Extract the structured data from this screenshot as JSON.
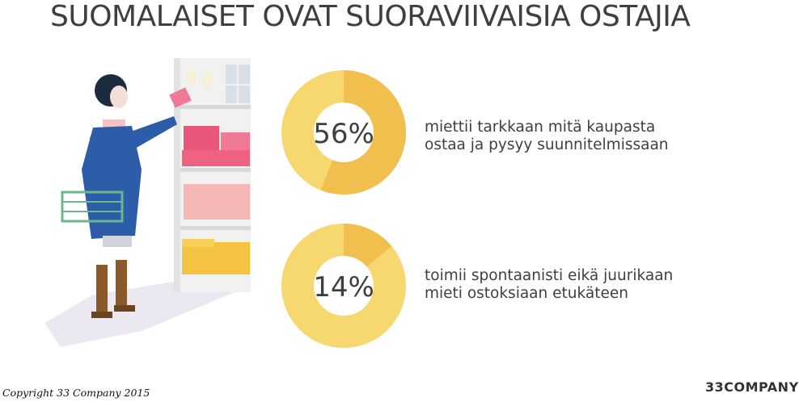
{
  "title": "SUOMALAISET OVAT SUORAVIIVAISIA OSTAJIA",
  "colors": {
    "ring_light": "#f7d76f",
    "ring_dark": "#f1bf4d",
    "text": "#3f3f3f"
  },
  "chart_data": [
    {
      "type": "pie",
      "values": [
        56,
        44
      ],
      "center_label": "56%",
      "description_lines": [
        "miettii tarkkaan mitä kaupasta",
        "ostaa ja pysyy suunnitelmissaan"
      ]
    },
    {
      "type": "pie",
      "values": [
        14,
        86
      ],
      "center_label": "14%",
      "description_lines": [
        "toimii spontaanisti eikä juurikaan",
        "mieti ostoksiaan etukäteen"
      ]
    }
  ],
  "footer": {
    "copyright": "Copyright 33 Company 2015",
    "logo": "33COMPANY"
  }
}
